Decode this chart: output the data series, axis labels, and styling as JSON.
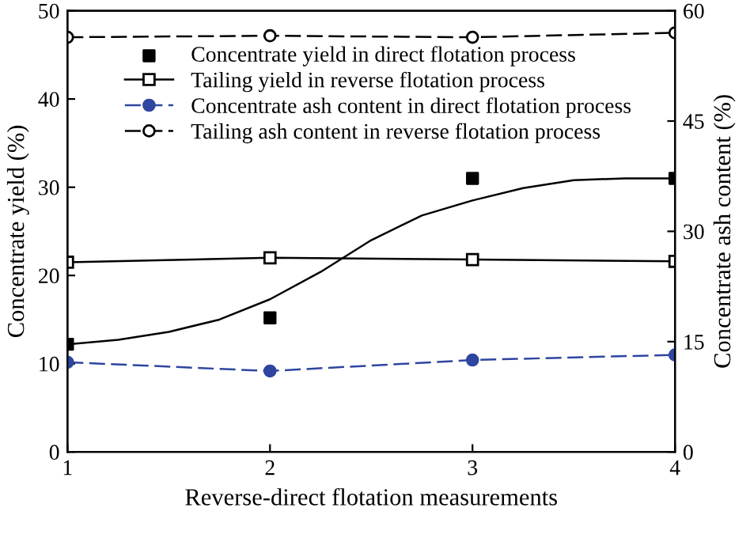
{
  "chart_data": {
    "type": "line",
    "xlabel": "Reverse-direct flotation measurements",
    "ylabel": "Concentrate yield (%)",
    "y2label": "Concentrate ash content (%)",
    "x": [
      1,
      2,
      3,
      4
    ],
    "series": [
      {
        "name": "Concentrate yield in direct flotation process",
        "type": "scatter",
        "color": "#000000",
        "marker": "square",
        "values": [
          12.2,
          15.2,
          31,
          31
        ]
      },
      {
        "name": "Tailing yield in reverse flotation process",
        "color": "#000000",
        "marker": "square",
        "line_style": "solid",
        "values": [
          21.5,
          22,
          21.8,
          21.6
        ]
      },
      {
        "name": "Concentrate ash content in direct flotation process",
        "axis": "y2",
        "color": "#2e46a0",
        "marker": "circle",
        "line_style": "dashed",
        "values": [
          12.2,
          11.0,
          12.5,
          13.2
        ]
      },
      {
        "name": "Tailing ash content in reverse flotation process",
        "axis": "y2",
        "color": "#000000",
        "marker": "circle",
        "line_style": "dashed",
        "values": [
          56.4,
          56.6,
          56.4,
          57
        ]
      },
      {
        "color": "#000000",
        "marker": "none",
        "line_style": "solid",
        "x": [
          1,
          1.25,
          1.5,
          1.75,
          2,
          2.25,
          2.5,
          2.75,
          3,
          3.25,
          3.5,
          3.75,
          4
        ],
        "values": [
          12.2,
          12.7,
          13.6,
          15.0,
          17.3,
          20.4,
          24.0,
          26.8,
          28.5,
          29.9,
          30.8,
          31,
          31
        ]
      }
    ],
    "xlim": [
      1,
      4
    ],
    "xticks": [
      1,
      2,
      3,
      4
    ],
    "ylim": [
      0,
      50
    ],
    "yticks": [
      0,
      10,
      20,
      30,
      40,
      50
    ],
    "y2lim": [
      0,
      60
    ],
    "y2ticks": [
      0,
      15,
      30,
      45,
      60
    ],
    "grid": false,
    "legend": "top left"
  }
}
